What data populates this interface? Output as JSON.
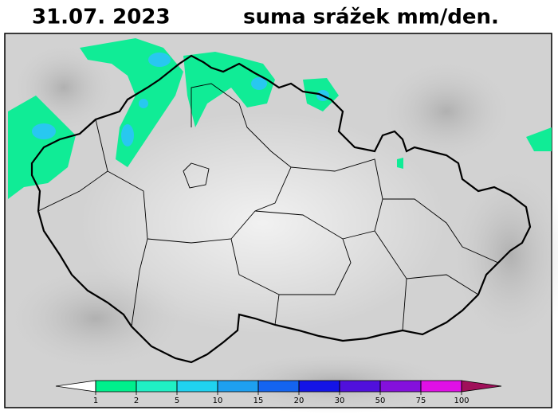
{
  "header": {
    "date": "31.07.  2023",
    "title": "suma srážek mm/den."
  },
  "colorbar": {
    "ticks": [
      1,
      2,
      5,
      10,
      15,
      20,
      30,
      50,
      75,
      100
    ],
    "under_color": "#ffffff",
    "colors": [
      "#00f08c",
      "#20f0c4",
      "#20d2f0",
      "#1ea0f0",
      "#1464f0",
      "#1414e6",
      "#5010dc",
      "#8410dc",
      "#e010e6",
      "#a0105a"
    ]
  }
}
